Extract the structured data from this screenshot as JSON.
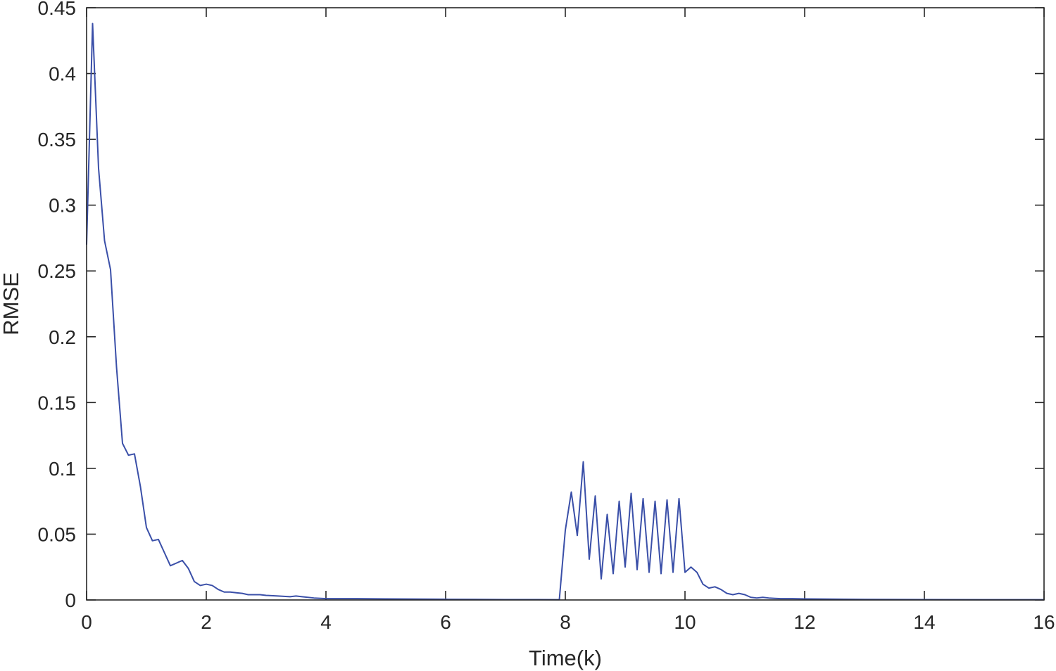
{
  "chart_data": {
    "type": "line",
    "title": "",
    "xlabel": "Time(k)",
    "ylabel": "RMSE",
    "xlim": [
      0,
      16
    ],
    "ylim": [
      0,
      0.45
    ],
    "grid": false,
    "box": true,
    "xticks": [
      0,
      2,
      4,
      6,
      8,
      10,
      12,
      14,
      16
    ],
    "xtick_labels": [
      "0",
      "2",
      "4",
      "6",
      "8",
      "10",
      "12",
      "14",
      "16"
    ],
    "yticks": [
      0,
      0.05,
      0.1,
      0.15,
      0.2,
      0.25,
      0.3,
      0.35,
      0.4,
      0.45
    ],
    "ytick_labels": [
      "0",
      "0.05",
      "0.1",
      "0.15",
      "0.2",
      "0.25",
      "0.3",
      "0.35",
      "0.4",
      "0.45"
    ],
    "colors": {
      "line": "#3a4fa8",
      "axis": "#262626",
      "background": "#ffffff"
    },
    "series": [
      {
        "x": [
          0,
          0.1,
          0.2,
          0.3,
          0.4,
          0.5,
          0.6,
          0.7,
          0.8,
          0.9,
          1.0,
          1.1,
          1.2,
          1.3,
          1.4,
          1.5,
          1.6,
          1.7,
          1.8,
          1.9,
          2.0,
          2.1,
          2.2,
          2.3,
          2.4,
          2.5,
          2.6,
          2.7,
          2.8,
          2.9,
          3.0,
          3.2,
          3.4,
          3.5,
          3.6,
          3.8,
          4.0,
          4.5,
          5.0,
          5.5,
          6.0,
          6.5,
          7.0,
          7.5,
          7.9,
          8.0,
          8.1,
          8.2,
          8.3,
          8.4,
          8.5,
          8.6,
          8.7,
          8.8,
          8.9,
          9.0,
          9.1,
          9.2,
          9.3,
          9.4,
          9.5,
          9.6,
          9.7,
          9.8,
          9.9,
          10.0,
          10.1,
          10.2,
          10.3,
          10.4,
          10.5,
          10.6,
          10.7,
          10.8,
          10.9,
          11.0,
          11.1,
          11.2,
          11.3,
          11.4,
          11.5,
          11.6,
          11.8,
          12.0,
          12.5,
          13.0,
          14.0,
          15.0,
          16.0
        ],
        "y": [
          0.27,
          0.438,
          0.328,
          0.273,
          0.251,
          0.177,
          0.119,
          0.11,
          0.111,
          0.086,
          0.055,
          0.045,
          0.046,
          0.036,
          0.026,
          0.028,
          0.03,
          0.024,
          0.014,
          0.011,
          0.012,
          0.011,
          0.008,
          0.006,
          0.006,
          0.0055,
          0.005,
          0.004,
          0.004,
          0.004,
          0.0035,
          0.003,
          0.0025,
          0.003,
          0.0025,
          0.0015,
          0.001,
          0.001,
          0.0008,
          0.0007,
          0.0005,
          0.0004,
          0.0003,
          0.0003,
          0.0002,
          0.053,
          0.082,
          0.049,
          0.105,
          0.031,
          0.079,
          0.016,
          0.065,
          0.02,
          0.075,
          0.025,
          0.081,
          0.023,
          0.077,
          0.021,
          0.075,
          0.02,
          0.076,
          0.021,
          0.077,
          0.021,
          0.025,
          0.021,
          0.012,
          0.009,
          0.01,
          0.008,
          0.005,
          0.004,
          0.005,
          0.004,
          0.002,
          0.0015,
          0.002,
          0.0015,
          0.0012,
          0.001,
          0.001,
          0.0008,
          0.0006,
          0.0004,
          0.0003,
          0.0002,
          0.0002
        ]
      }
    ]
  }
}
